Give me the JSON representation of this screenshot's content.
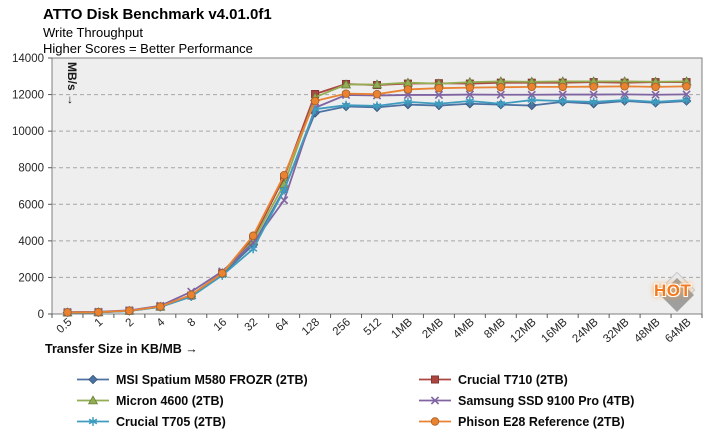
{
  "header": {
    "title": "ATTO Disk Benchmark v4.01.0f1",
    "subtitle": "Write Throughput",
    "tagline": "Higher Scores = Better Performance"
  },
  "chart_data": {
    "type": "line",
    "title": "ATTO Disk Benchmark v4.01.0f1 — Write Throughput",
    "xlabel": "Transfer Size in KB/MB →",
    "ylabel": "MB/s",
    "ylabel_arrow": "↓",
    "ylim": [
      0,
      14000
    ],
    "ytick_step": 2000,
    "yticks": [
      "0",
      "2000",
      "4000",
      "6000",
      "8000",
      "10000",
      "12000",
      "14000"
    ],
    "grid": "horizontal-dashed",
    "legend_position": "bottom-two-columns",
    "categories": [
      "0.5",
      "1",
      "2",
      "4",
      "8",
      "16",
      "32",
      "64",
      "128",
      "256",
      "512",
      "1MB",
      "2MB",
      "4MB",
      "8MB",
      "12MB",
      "16MB",
      "24MB",
      "32MB",
      "48MB",
      "64MB"
    ],
    "series": [
      {
        "name": "MSI Spatium M580 FROZR (2TB)",
        "color": "#4b72a3",
        "marker": "diamond",
        "values": [
          80,
          90,
          170,
          390,
          980,
          2180,
          3780,
          6820,
          11000,
          11350,
          11300,
          11450,
          11400,
          11500,
          11450,
          11400,
          11600,
          11500,
          11650,
          11550,
          11650
        ]
      },
      {
        "name": "Crucial T710 (2TB)",
        "color": "#ab4540",
        "marker": "square",
        "values": [
          85,
          95,
          175,
          400,
          1010,
          2230,
          4120,
          7480,
          12030,
          12580,
          12520,
          12600,
          12620,
          12600,
          12650,
          12650,
          12650,
          12680,
          12650,
          12680,
          12680
        ]
      },
      {
        "name": "Micron 4600 (2TB)",
        "color": "#93ad52",
        "marker": "triangle",
        "values": [
          85,
          95,
          175,
          400,
          1030,
          2240,
          4000,
          7100,
          11850,
          12550,
          12550,
          12650,
          12600,
          12680,
          12720,
          12700,
          12720,
          12720,
          12720,
          12700,
          12720
        ]
      },
      {
        "name": "Samsung SSD 9100 Pro (4TB)",
        "color": "#8064a2",
        "marker": "x",
        "values": [
          110,
          120,
          200,
          450,
          1220,
          2330,
          3890,
          6220,
          11280,
          11980,
          11950,
          11980,
          11980,
          12000,
          11990,
          11990,
          12000,
          12000,
          12010,
          11990,
          12010
        ]
      },
      {
        "name": "Crucial T705 (2TB)",
        "color": "#3f9cbf",
        "marker": "asterisk",
        "values": [
          80,
          90,
          165,
          385,
          950,
          2110,
          3560,
          6770,
          11200,
          11420,
          11380,
          11600,
          11500,
          11650,
          11500,
          11700,
          11650,
          11600,
          11700,
          11600,
          11700
        ]
      },
      {
        "name": "Phison E28 Reference (2TB)",
        "color": "#e98332",
        "marker": "circle",
        "values": [
          90,
          100,
          180,
          410,
          1050,
          2230,
          4280,
          7590,
          11650,
          12050,
          12020,
          12280,
          12350,
          12380,
          12400,
          12420,
          12420,
          12430,
          12450,
          12420,
          12450
        ]
      }
    ]
  },
  "watermark": {
    "text": "HOT"
  },
  "colors": {
    "plot_bg": "#eeeeee",
    "grid": "#a6a6a6",
    "plot_border": "#7f7f7f",
    "axis": "#595959",
    "tick_text": "#262626"
  }
}
